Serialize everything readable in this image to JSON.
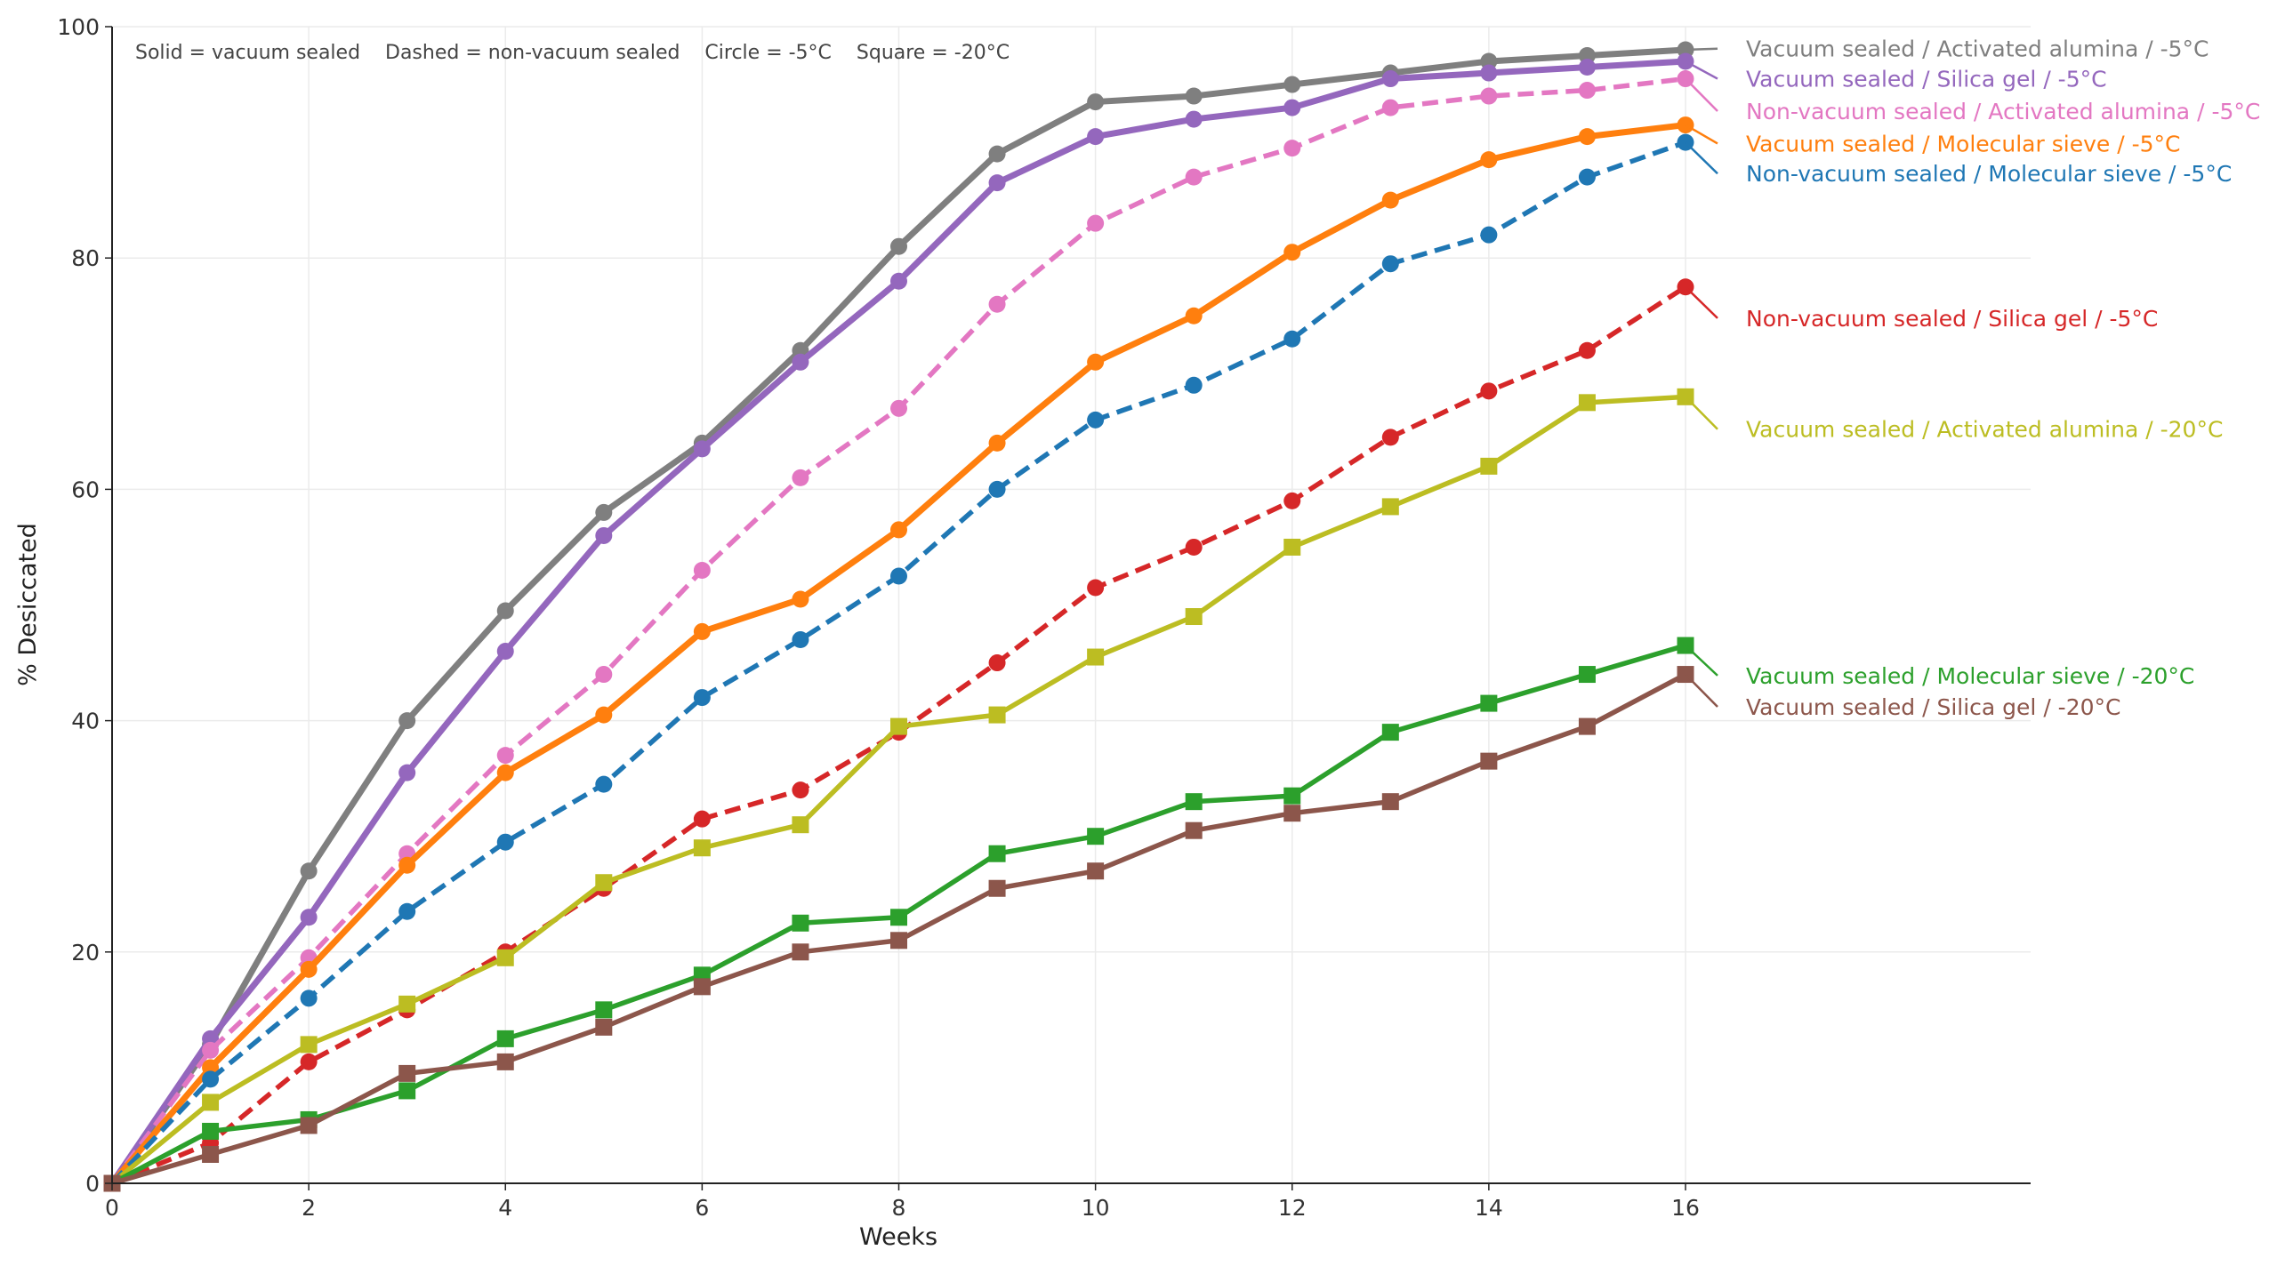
{
  "chart_data": {
    "type": "line",
    "title": "",
    "xlabel": "Weeks",
    "ylabel": "% Desiccated",
    "xlim": [
      0,
      16
    ],
    "ylim": [
      0,
      100
    ],
    "xticks": [
      0,
      2,
      4,
      6,
      8,
      10,
      12,
      14,
      16
    ],
    "yticks": [
      0,
      20,
      40,
      60,
      80,
      100
    ],
    "grid": true,
    "legend": "direct labels at right",
    "caption": "Solid = vacuum sealed    Dashed = non-vacuum sealed    Circle = -5°C    Square = -20°C",
    "x": [
      0,
      1,
      2,
      3,
      4,
      5,
      6,
      7,
      8,
      9,
      10,
      11,
      12,
      13,
      14,
      15,
      16
    ],
    "series": [
      {
        "name": "Vacuum sealed / Activated alumina / -5°C",
        "color": "#7f7f7f",
        "style": "solid",
        "marker": "circle",
        "bold": true,
        "values": [
          0,
          12,
          27,
          40,
          49.5,
          58,
          64,
          72,
          81,
          89,
          93.5,
          94,
          95,
          96,
          97,
          97.5,
          98
        ]
      },
      {
        "name": "Vacuum sealed / Silica gel / -5°C",
        "color": "#9467bd",
        "style": "solid",
        "marker": "circle",
        "bold": true,
        "values": [
          0,
          12.5,
          23,
          35.5,
          46,
          56,
          63.5,
          71,
          78,
          86.5,
          90.5,
          92,
          93,
          95.5,
          96,
          96.5,
          97
        ]
      },
      {
        "name": "Non-vacuum sealed / Activated alumina / -5°C",
        "color": "#e377c2",
        "style": "dashed",
        "marker": "circle",
        "bold": false,
        "values": [
          0,
          11.5,
          19.5,
          28.5,
          37,
          44,
          53,
          61,
          67,
          76,
          83,
          87,
          89.5,
          93,
          94,
          94.5,
          95.5
        ]
      },
      {
        "name": "Vacuum sealed / Molecular sieve / -5°C",
        "color": "#ff7f0e",
        "style": "solid",
        "marker": "circle",
        "bold": true,
        "values": [
          0,
          10,
          18.5,
          27.5,
          35.5,
          40.5,
          47.7,
          50.5,
          56.5,
          64,
          71,
          75,
          80.5,
          85,
          88.5,
          90.5,
          91.5
        ]
      },
      {
        "name": "Non-vacuum sealed / Molecular sieve / -5°C",
        "color": "#1f77b4",
        "style": "dashed",
        "marker": "circle",
        "bold": false,
        "values": [
          0,
          9,
          16,
          23.5,
          29.5,
          34.5,
          42,
          47,
          52.5,
          60,
          66,
          69,
          73,
          79.5,
          82,
          87,
          90
        ]
      },
      {
        "name": "Non-vacuum sealed / Silica gel / -5°C",
        "color": "#d62728",
        "style": "dashed",
        "marker": "circle",
        "bold": false,
        "values": [
          0,
          3.5,
          10.5,
          15,
          20,
          25.5,
          31.5,
          34,
          39,
          45,
          51.5,
          55,
          59,
          64.5,
          68.5,
          72,
          77.5
        ]
      },
      {
        "name": "Vacuum sealed / Activated alumina / -20°C",
        "color": "#bcbd22",
        "style": "solid",
        "marker": "square",
        "bold": false,
        "values": [
          0,
          7,
          12,
          15.5,
          19.5,
          26,
          29,
          31,
          39.5,
          40.5,
          45.5,
          49,
          55,
          58.5,
          62,
          67.5,
          68
        ]
      },
      {
        "name": "Vacuum sealed / Molecular sieve / -20°C",
        "color": "#2ca02c",
        "style": "solid",
        "marker": "square",
        "bold": false,
        "values": [
          0,
          4.5,
          5.5,
          8,
          12.5,
          15,
          18,
          22.5,
          23,
          28.5,
          30,
          33,
          33.5,
          39,
          41.5,
          44,
          46.5
        ]
      },
      {
        "name": "Vacuum sealed / Silica gel / -20°C",
        "color": "#8c564b",
        "style": "solid",
        "marker": "square",
        "bold": false,
        "values": [
          0,
          2.5,
          5,
          9.5,
          10.5,
          13.5,
          17,
          20,
          21,
          25.5,
          27,
          30.5,
          32,
          33,
          36.5,
          39.5,
          44
        ]
      }
    ]
  }
}
